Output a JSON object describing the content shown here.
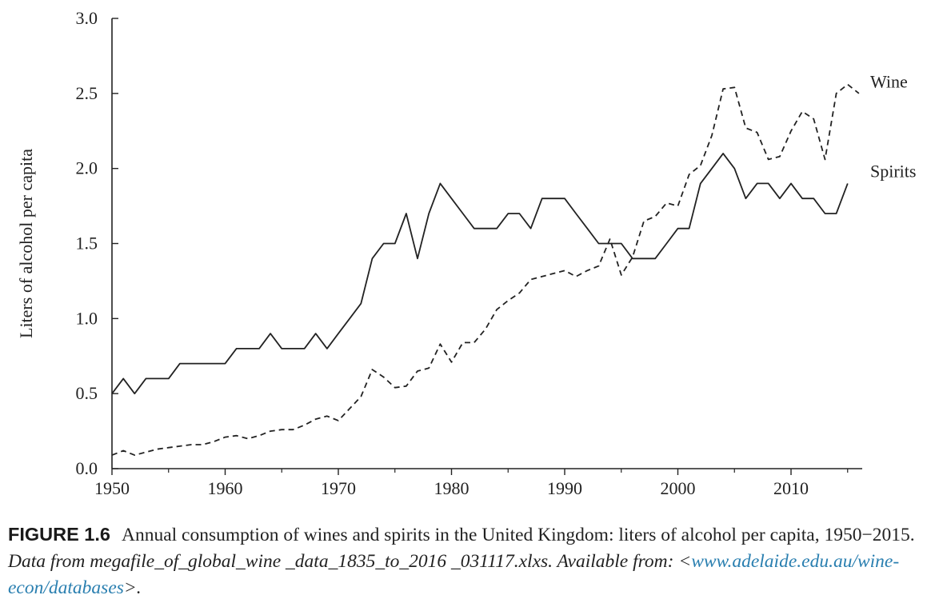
{
  "chart_data": {
    "type": "line",
    "title": "",
    "xlabel": "",
    "ylabel": "Liters of alcohol per capita",
    "xlim": [
      1950,
      2016
    ],
    "ylim": [
      0,
      3.0
    ],
    "x_ticks": [
      1950,
      1960,
      1970,
      1980,
      1990,
      2000,
      2010
    ],
    "y_ticks": [
      "0.0",
      "0.5",
      "1.0",
      "1.5",
      "2.0",
      "2.5",
      "3.0"
    ],
    "grid": false,
    "legend": "labels at line ends (right)",
    "series": [
      {
        "name": "Spirits",
        "style": "solid",
        "color": "#222222",
        "points": [
          [
            1950,
            0.5
          ],
          [
            1951,
            0.6
          ],
          [
            1952,
            0.5
          ],
          [
            1953,
            0.6
          ],
          [
            1954,
            0.6
          ],
          [
            1955,
            0.6
          ],
          [
            1956,
            0.7
          ],
          [
            1957,
            0.7
          ],
          [
            1958,
            0.7
          ],
          [
            1959,
            0.7
          ],
          [
            1960,
            0.7
          ],
          [
            1961,
            0.8
          ],
          [
            1962,
            0.8
          ],
          [
            1963,
            0.8
          ],
          [
            1964,
            0.9
          ],
          [
            1965,
            0.8
          ],
          [
            1966,
            0.8
          ],
          [
            1967,
            0.8
          ],
          [
            1968,
            0.9
          ],
          [
            1969,
            0.8
          ],
          [
            1970,
            0.9
          ],
          [
            1971,
            1.0
          ],
          [
            1972,
            1.1
          ],
          [
            1973,
            1.4
          ],
          [
            1974,
            1.5
          ],
          [
            1975,
            1.5
          ],
          [
            1976,
            1.7
          ],
          [
            1977,
            1.4
          ],
          [
            1978,
            1.7
          ],
          [
            1979,
            1.9
          ],
          [
            1980,
            1.8
          ],
          [
            1981,
            1.7
          ],
          [
            1982,
            1.6
          ],
          [
            1983,
            1.6
          ],
          [
            1984,
            1.6
          ],
          [
            1985,
            1.7
          ],
          [
            1986,
            1.7
          ],
          [
            1987,
            1.6
          ],
          [
            1988,
            1.8
          ],
          [
            1989,
            1.8
          ],
          [
            1990,
            1.8
          ],
          [
            1991,
            1.7
          ],
          [
            1992,
            1.6
          ],
          [
            1993,
            1.5
          ],
          [
            1994,
            1.5
          ],
          [
            1995,
            1.5
          ],
          [
            1996,
            1.4
          ],
          [
            1997,
            1.4
          ],
          [
            1998,
            1.4
          ],
          [
            1999,
            1.5
          ],
          [
            2000,
            1.6
          ],
          [
            2001,
            1.6
          ],
          [
            2002,
            1.9
          ],
          [
            2003,
            2.0
          ],
          [
            2004,
            2.1
          ],
          [
            2005,
            2.0
          ],
          [
            2006,
            1.8
          ],
          [
            2007,
            1.9
          ],
          [
            2008,
            1.9
          ],
          [
            2009,
            1.8
          ],
          [
            2010,
            1.9
          ],
          [
            2011,
            1.8
          ],
          [
            2012,
            1.8
          ],
          [
            2013,
            1.7
          ],
          [
            2014,
            1.7
          ],
          [
            2015,
            1.9
          ]
        ]
      },
      {
        "name": "Wine",
        "style": "dashed",
        "color": "#222222",
        "points": [
          [
            1950,
            0.09
          ],
          [
            1951,
            0.12
          ],
          [
            1952,
            0.09
          ],
          [
            1953,
            0.11
          ],
          [
            1954,
            0.13
          ],
          [
            1955,
            0.14
          ],
          [
            1956,
            0.15
          ],
          [
            1957,
            0.16
          ],
          [
            1958,
            0.16
          ],
          [
            1959,
            0.18
          ],
          [
            1960,
            0.21
          ],
          [
            1961,
            0.22
          ],
          [
            1962,
            0.2
          ],
          [
            1963,
            0.22
          ],
          [
            1964,
            0.25
          ],
          [
            1965,
            0.26
          ],
          [
            1966,
            0.26
          ],
          [
            1967,
            0.29
          ],
          [
            1968,
            0.33
          ],
          [
            1969,
            0.35
          ],
          [
            1970,
            0.32
          ],
          [
            1971,
            0.4
          ],
          [
            1972,
            0.48
          ],
          [
            1973,
            0.66
          ],
          [
            1974,
            0.61
          ],
          [
            1975,
            0.54
          ],
          [
            1976,
            0.55
          ],
          [
            1977,
            0.65
          ],
          [
            1978,
            0.67
          ],
          [
            1979,
            0.83
          ],
          [
            1980,
            0.71
          ],
          [
            1981,
            0.84
          ],
          [
            1982,
            0.84
          ],
          [
            1983,
            0.93
          ],
          [
            1984,
            1.06
          ],
          [
            1985,
            1.12
          ],
          [
            1986,
            1.17
          ],
          [
            1987,
            1.26
          ],
          [
            1988,
            1.28
          ],
          [
            1989,
            1.3
          ],
          [
            1990,
            1.32
          ],
          [
            1991,
            1.28
          ],
          [
            1992,
            1.32
          ],
          [
            1993,
            1.35
          ],
          [
            1994,
            1.53
          ],
          [
            1995,
            1.29
          ],
          [
            1996,
            1.41
          ],
          [
            1997,
            1.65
          ],
          [
            1998,
            1.68
          ],
          [
            1999,
            1.77
          ],
          [
            2000,
            1.75
          ],
          [
            2001,
            1.96
          ],
          [
            2002,
            2.02
          ],
          [
            2003,
            2.22
          ],
          [
            2004,
            2.53
          ],
          [
            2005,
            2.54
          ],
          [
            2006,
            2.27
          ],
          [
            2007,
            2.24
          ],
          [
            2008,
            2.06
          ],
          [
            2009,
            2.08
          ],
          [
            2010,
            2.25
          ],
          [
            2011,
            2.38
          ],
          [
            2012,
            2.33
          ],
          [
            2013,
            2.06
          ],
          [
            2014,
            2.5
          ],
          [
            2015,
            2.56
          ],
          [
            2016,
            2.5
          ]
        ]
      }
    ]
  },
  "caption": {
    "figure_label": "FIGURE 1.6",
    "text": "Annual consumption of wines and spirits in the United Kingdom: liters of alcohol per capita, 1950−2015.",
    "source_text": "Data from megafile_of_global_wine _data_1835_to_2016 _031117.xlxs. Available from: <",
    "url": "www.adelaide.edu.au/wine-econ/databases",
    "source_end": ">."
  }
}
